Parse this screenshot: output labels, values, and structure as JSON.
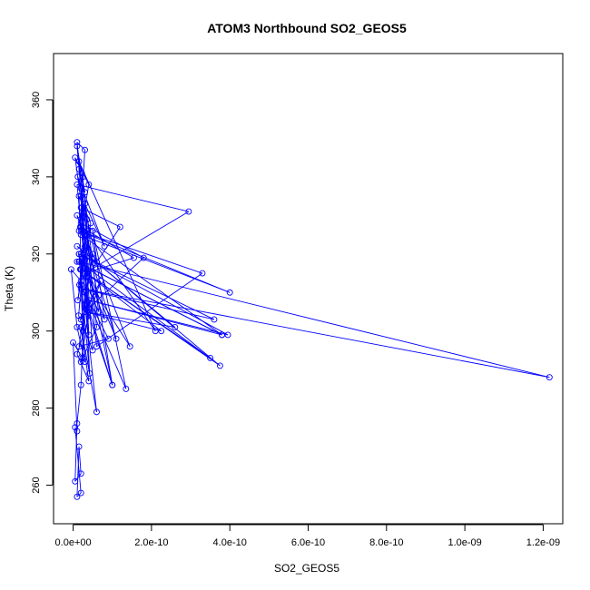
{
  "chart_data": {
    "type": "scatter",
    "title": "ATOM3 Northbound SO2_GEOS5",
    "xlabel": "SO2_GEOS5",
    "ylabel": "Theta (K)",
    "xlim": [
      -5e-11,
      1.25e-09
    ],
    "ylim": [
      250,
      372
    ],
    "x_ticks": [
      0,
      2e-10,
      4e-10,
      6e-10,
      8e-10,
      1e-09,
      1.2e-09
    ],
    "x_tick_labels": [
      "0.0e+00",
      "2.0e-10",
      "4.0e-10",
      "6.0e-10",
      "8.0e-10",
      "1.0e-09",
      "1.2e-09"
    ],
    "y_ticks": [
      260,
      280,
      300,
      320,
      340,
      360
    ],
    "y_tick_labels": [
      "260",
      "280",
      "300",
      "320",
      "340",
      "360"
    ],
    "marker": "open-circle",
    "line_connected": true,
    "color": "#0000ff",
    "series": [
      {
        "x": [
          1.5e-11,
          3e-11,
          1e-11,
          2.5e-11,
          5e-12,
          4e-11,
          2e-11,
          6e-11,
          1.2e-11,
          8e-11,
          3e-11,
          5e-11,
          1.5e-11,
          2.1e-10,
          2e-11,
          1.8e-10,
          4e-11,
          1e-11,
          2.95e-10,
          3e-11,
          1.55e-10,
          2e-11,
          3.5e-11,
          1.2e-10,
          2e-11,
          4e-11,
          3e-11,
          1e-10,
          2e-11,
          6e-11,
          3.3e-10,
          1.5e-11,
          4e-10,
          2e-11,
          3.8e-10,
          1e-11,
          3.8e-10,
          4e-11,
          3.95e-10,
          1.5e-11,
          3.6e-10,
          2e-11,
          1.216e-09,
          1.5e-11,
          3.5e-10,
          2e-11,
          3.75e-10,
          1e-11,
          2.6e-10,
          3e-11,
          2.25e-10,
          2e-11,
          1.45e-10,
          1e-11,
          1.1e-10,
          2e-11,
          8e-11,
          5e-11,
          1.35e-10,
          2e-11,
          1e-10,
          3e-11,
          6e-11,
          2e-11,
          4e-11,
          1e-11,
          7e-11,
          2e-11,
          5e-11,
          1.5e-11,
          9e-11,
          3e-11,
          2e-11,
          1e-11,
          5e-12,
          2e-11,
          1.5e-11,
          1e-11,
          2e-11,
          5e-12,
          1e-11,
          0.0,
          3e-11,
          1e-11,
          -5e-12,
          2e-11,
          1.5e-11,
          4e-11,
          2e-11,
          6e-11,
          1e-11,
          3e-11,
          1.8e-11,
          2.5e-11,
          2.2e-11,
          2.8e-11,
          2.2e-11,
          1.6e-11,
          3e-11,
          1.2e-11,
          4.5e-11,
          1.5e-11,
          2.5e-11,
          1.8e-11,
          6.5e-11,
          2.2e-11,
          3.5e-11,
          1.4e-11,
          5e-11,
          2e-11,
          4.2e-11,
          1.6e-11,
          3.8e-11,
          2.4e-11
        ],
        "y": [
          342,
          336,
          348,
          330,
          345,
          338,
          326,
          318,
          340,
          322,
          333,
          310,
          344,
          300,
          328,
          319,
          306,
          338,
          331,
          315,
          319,
          327,
          314,
          327,
          332,
          299,
          320,
          286,
          335,
          296,
          315,
          326,
          310,
          325,
          299,
          318,
          299,
          308,
          299,
          320,
          303,
          311,
          288,
          318,
          293,
          316,
          291,
          322,
          301,
          305,
          300,
          316,
          296,
          330,
          298,
          320,
          303,
          326,
          285,
          312,
          286,
          307,
          279,
          301,
          287,
          294,
          313,
          303,
          320,
          296,
          298,
          310,
          286,
          276,
          261,
          263,
          270,
          257,
          258,
          275,
          274,
          297,
          292,
          301,
          316,
          313,
          320,
          305,
          292,
          301,
          349,
          347,
          327,
          340,
          332,
          321,
          318,
          312,
          322,
          308,
          328,
          335,
          300,
          316,
          305,
          341,
          329,
          304,
          295,
          337,
          289,
          318,
          326,
          293
        ]
      }
    ]
  }
}
